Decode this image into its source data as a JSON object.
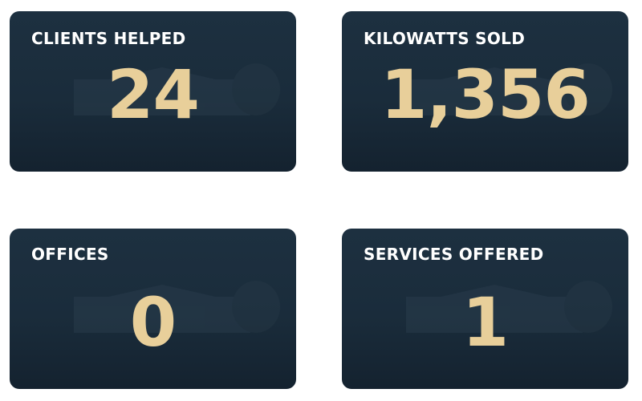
{
  "colors": {
    "card_background": "#1a2c3b",
    "number": "#e8cf9a",
    "title": "#ffffff"
  },
  "stats": [
    {
      "label": "CLIENTS HELPED",
      "value": "24"
    },
    {
      "label": "KILOWATTS SOLD",
      "value": "1,356"
    },
    {
      "label": "OFFICES",
      "value": "0"
    },
    {
      "label": "SERVICES OFFERED",
      "value": "1"
    }
  ]
}
